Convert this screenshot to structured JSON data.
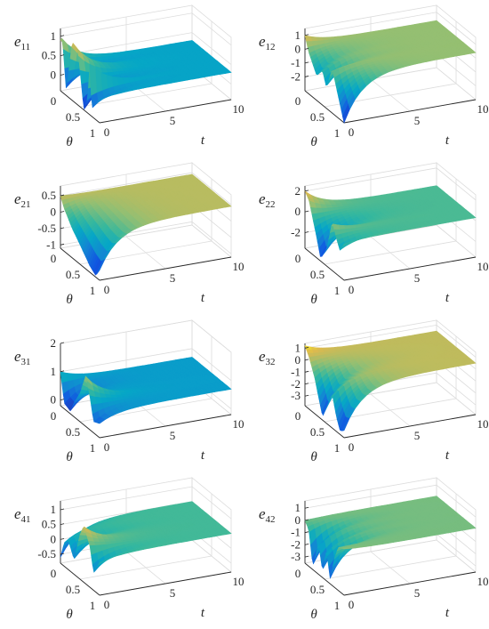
{
  "chart_data": [
    {
      "type": "surface",
      "zlabel_base": "e",
      "zlabel_sub": "11",
      "xlabel": "θ",
      "ylabel": "t",
      "theta_ticks": [
        "0",
        "0.5",
        "1"
      ],
      "t_ticks": [
        "0",
        "5",
        "10"
      ],
      "z_ticks": [
        "0",
        "0.5",
        "1"
      ],
      "zlim": [
        -0.4,
        1.2
      ],
      "t_range": [
        0,
        10
      ],
      "theta_range": [
        0,
        1
      ],
      "cmax": 1.2,
      "steady": 0.3,
      "initial_profile": [
        [
          0.0,
          0.9
        ],
        [
          0.05,
          1.0
        ],
        [
          0.15,
          -0.3
        ],
        [
          0.3,
          1.1
        ],
        [
          0.45,
          1.0
        ],
        [
          0.6,
          -0.4
        ],
        [
          0.7,
          0.0
        ],
        [
          0.75,
          0.9
        ],
        [
          0.8,
          -0.2
        ],
        [
          1.0,
          0.2
        ]
      ]
    },
    {
      "type": "surface",
      "zlabel_base": "e",
      "zlabel_sub": "12",
      "xlabel": "θ",
      "ylabel": "t",
      "theta_ticks": [
        "0",
        "0.5",
        "1"
      ],
      "t_ticks": [
        "0",
        "5",
        "10"
      ],
      "z_ticks": [
        "-2",
        "-1",
        "0",
        "1"
      ],
      "zlim": [
        -3,
        1.5
      ],
      "t_range": [
        0,
        10
      ],
      "theta_range": [
        0,
        1
      ],
      "cmax": 1.5,
      "steady": 0.4,
      "initial_profile": [
        [
          0.0,
          1.0
        ],
        [
          0.1,
          0.0
        ],
        [
          0.3,
          -1.2
        ],
        [
          0.45,
          -0.5
        ],
        [
          0.55,
          -1.5
        ],
        [
          0.7,
          0.2
        ],
        [
          1.0,
          -3.0
        ]
      ]
    },
    {
      "type": "surface",
      "zlabel_base": "e",
      "zlabel_sub": "21",
      "xlabel": "θ",
      "ylabel": "t",
      "theta_ticks": [
        "0",
        "0.5",
        "1"
      ],
      "t_ticks": [
        "0",
        "5",
        "10"
      ],
      "z_ticks": [
        "-1",
        "-0.5",
        "0",
        "0.5"
      ],
      "zlim": [
        -1.1,
        0.8
      ],
      "t_range": [
        0,
        10
      ],
      "theta_range": [
        0,
        1
      ],
      "cmax": 0.8,
      "steady": 0.45,
      "initial_profile": [
        [
          0.0,
          0.5
        ],
        [
          0.1,
          0.2
        ],
        [
          0.3,
          -0.2
        ],
        [
          0.5,
          -0.5
        ],
        [
          0.75,
          -0.9
        ],
        [
          0.9,
          -1.05
        ],
        [
          1.0,
          -0.8
        ]
      ]
    },
    {
      "type": "surface",
      "zlabel_base": "e",
      "zlabel_sub": "22",
      "xlabel": "θ",
      "ylabel": "t",
      "theta_ticks": [
        "0",
        "0.5",
        "1"
      ],
      "t_ticks": [
        "0",
        "5",
        "10"
      ],
      "z_ticks": [
        "-2",
        "0",
        "2"
      ],
      "zlim": [
        -3.5,
        2.5
      ],
      "t_range": [
        0,
        10
      ],
      "theta_range": [
        0,
        1
      ],
      "cmax": 2.5,
      "steady": 0.3,
      "initial_profile": [
        [
          0.0,
          2.0
        ],
        [
          0.1,
          1.5
        ],
        [
          0.2,
          0.0
        ],
        [
          0.3,
          -1.5
        ],
        [
          0.4,
          -3.2
        ],
        [
          0.55,
          -2.0
        ],
        [
          0.7,
          1.2
        ],
        [
          0.8,
          0.0
        ],
        [
          0.9,
          -1.0
        ],
        [
          1.0,
          0.0
        ]
      ]
    },
    {
      "type": "surface",
      "zlabel_base": "e",
      "zlabel_sub": "31",
      "xlabel": "θ",
      "ylabel": "t",
      "theta_ticks": [
        "0",
        "0.5",
        "1"
      ],
      "t_ticks": [
        "0",
        "5",
        "10"
      ],
      "z_ticks": [
        "0",
        "1",
        "2"
      ],
      "zlim": [
        -0.2,
        2
      ],
      "t_range": [
        0,
        10
      ],
      "theta_range": [
        0,
        1
      ],
      "cmax": 2.0,
      "steady": 0.7,
      "initial_profile": [
        [
          0.0,
          1.0
        ],
        [
          0.1,
          0.0
        ],
        [
          0.25,
          -0.1
        ],
        [
          0.35,
          0.3
        ],
        [
          0.5,
          0.8
        ],
        [
          0.65,
          1.6
        ],
        [
          0.75,
          1.0
        ],
        [
          0.85,
          0.2
        ],
        [
          1.0,
          0.3
        ]
      ]
    },
    {
      "type": "surface",
      "zlabel_base": "e",
      "zlabel_sub": "32",
      "xlabel": "θ",
      "ylabel": "t",
      "theta_ticks": [
        "0",
        "0.5",
        "1"
      ],
      "t_ticks": [
        "0",
        "5",
        "10"
      ],
      "z_ticks": [
        "-3",
        "-2",
        "-1",
        "0",
        "1"
      ],
      "zlim": [
        -3.8,
        1.4
      ],
      "t_range": [
        0,
        10
      ],
      "theta_range": [
        0,
        1
      ],
      "cmax": 1.4,
      "steady": 0.5,
      "initial_profile": [
        [
          0.0,
          1.2
        ],
        [
          0.1,
          0.6
        ],
        [
          0.25,
          -0.8
        ],
        [
          0.45,
          -3.5
        ],
        [
          0.55,
          -2.5
        ],
        [
          0.7,
          -1.0
        ],
        [
          0.8,
          -2.5
        ],
        [
          0.9,
          -3.5
        ],
        [
          1.0,
          -3.2
        ]
      ]
    },
    {
      "type": "surface",
      "zlabel_base": "e",
      "zlabel_sub": "41",
      "xlabel": "θ",
      "ylabel": "t",
      "theta_ticks": [
        "0",
        "0.5",
        "1"
      ],
      "t_ticks": [
        "0",
        "5",
        "10"
      ],
      "z_ticks": [
        "-0.5",
        "0",
        "0.5",
        "1"
      ],
      "zlim": [
        -0.8,
        1.3
      ],
      "t_range": [
        0,
        10
      ],
      "theta_range": [
        0,
        1
      ],
      "cmax": 1.3,
      "steady": 0.5,
      "initial_profile": [
        [
          0.0,
          -0.6
        ],
        [
          0.1,
          0.0
        ],
        [
          0.2,
          0.2
        ],
        [
          0.35,
          -0.3
        ],
        [
          0.5,
          0.7
        ],
        [
          0.6,
          1.1
        ],
        [
          0.75,
          0.6
        ],
        [
          0.85,
          -0.2
        ],
        [
          1.0,
          0.3
        ]
      ]
    },
    {
      "type": "surface",
      "zlabel_base": "e",
      "zlabel_sub": "42",
      "xlabel": "θ",
      "ylabel": "t",
      "theta_ticks": [
        "0",
        "0.5",
        "1"
      ],
      "t_ticks": [
        "0",
        "5",
        "10"
      ],
      "z_ticks": [
        "-3",
        "-2",
        "-1",
        "0",
        "1"
      ],
      "zlim": [
        -3.5,
        1.6
      ],
      "t_range": [
        0,
        10
      ],
      "theta_range": [
        0,
        1
      ],
      "cmax": 1.6,
      "steady": 0.1,
      "initial_profile": [
        [
          0.0,
          0.0
        ],
        [
          0.1,
          -0.5
        ],
        [
          0.2,
          -3.2
        ],
        [
          0.35,
          -1.0
        ],
        [
          0.45,
          -3.0
        ],
        [
          0.55,
          -1.0
        ],
        [
          0.65,
          -3.2
        ],
        [
          0.75,
          -1.2
        ],
        [
          0.85,
          0.0
        ],
        [
          1.0,
          0.3
        ]
      ]
    }
  ]
}
